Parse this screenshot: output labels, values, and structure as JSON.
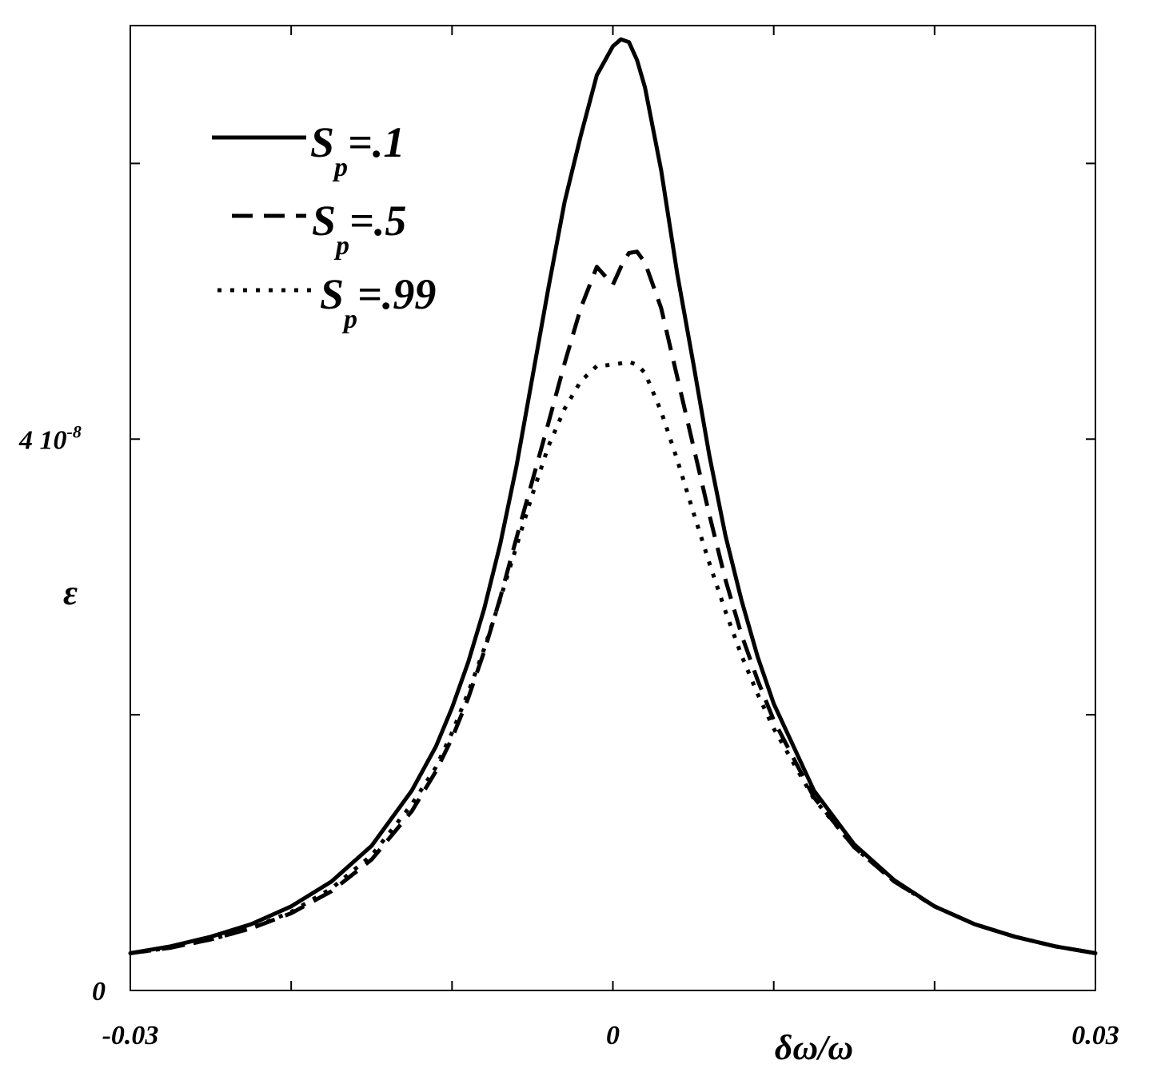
{
  "chart_data": {
    "type": "line",
    "xlabel": "δω/ω",
    "ylabel": "ε",
    "xlim": [
      -0.03,
      0.03
    ],
    "ylim": [
      0,
      7e-08
    ],
    "x_ticks": [
      {
        "value": -0.03,
        "label": "-0.03"
      },
      {
        "value": 0,
        "label": "0"
      },
      {
        "value": 0.03,
        "label": "0.03"
      }
    ],
    "y_ticks": [
      {
        "value": 0,
        "label": "0",
        "sup": ""
      },
      {
        "value": 4e-08,
        "label": "4 10",
        "sup": "-8"
      }
    ],
    "legend_position": "top-left",
    "series": [
      {
        "name": "S_p=.1",
        "legend_base": "S",
        "legend_sub": "p",
        "legend_val": "=.1",
        "style": "solid",
        "x": [
          -0.03,
          -0.0275,
          -0.025,
          -0.0225,
          -0.02,
          -0.0175,
          -0.015,
          -0.0125,
          -0.011,
          -0.01,
          -0.009,
          -0.008,
          -0.007,
          -0.006,
          -0.005,
          -0.004,
          -0.003,
          -0.002,
          -0.001,
          0,
          0.0005,
          0.001,
          0.0015,
          0.002,
          0.003,
          0.004,
          0.005,
          0.006,
          0.007,
          0.008,
          0.009,
          0.01,
          0.0125,
          0.015,
          0.0175,
          0.02,
          0.0225,
          0.025,
          0.0275,
          0.03
        ],
        "y": [
          2.7e-09,
          3.2e-09,
          3.9e-09,
          4.8e-09,
          6.1e-09,
          7.9e-09,
          1.05e-08,
          1.45e-08,
          1.77e-08,
          2.05e-08,
          2.38e-08,
          2.77e-08,
          3.24e-08,
          3.8e-08,
          4.45e-08,
          5.1e-08,
          5.72e-08,
          6.2e-08,
          6.64e-08,
          6.85e-08,
          6.9e-08,
          6.88e-08,
          6.75e-08,
          6.55e-08,
          5.95e-08,
          5.2e-08,
          4.55e-08,
          3.88e-08,
          3.3e-08,
          2.83e-08,
          2.42e-08,
          2.08e-08,
          1.45e-08,
          1.06e-08,
          8e-09,
          6.1e-09,
          4.8e-09,
          3.9e-09,
          3.2e-09,
          2.7e-09
        ]
      },
      {
        "name": "S_p=.5",
        "legend_base": "S",
        "legend_sub": "p",
        "legend_val": "=.5",
        "style": "dashed",
        "x": [
          -0.03,
          -0.0275,
          -0.025,
          -0.0225,
          -0.02,
          -0.0175,
          -0.015,
          -0.0125,
          -0.011,
          -0.01,
          -0.009,
          -0.008,
          -0.007,
          -0.006,
          -0.005,
          -0.004,
          -0.003,
          -0.002,
          -0.001,
          0,
          0.0005,
          0.001,
          0.0015,
          0.002,
          0.003,
          0.004,
          0.005,
          0.006,
          0.007,
          0.008,
          0.009,
          0.01,
          0.0125,
          0.015,
          0.0175,
          0.02,
          0.0225,
          0.025,
          0.0275,
          0.03
        ],
        "y": [
          2.7e-09,
          3.1e-09,
          3.7e-09,
          4.5e-09,
          5.6e-09,
          7.2e-09,
          9.5e-09,
          1.3e-08,
          1.59e-08,
          1.83e-08,
          2.12e-08,
          2.46e-08,
          2.85e-08,
          3.28e-08,
          3.7e-08,
          4.12e-08,
          4.55e-08,
          4.95e-08,
          5.25e-08,
          5.12e-08,
          5.25e-08,
          5.35e-08,
          5.36e-08,
          5.28e-08,
          4.95e-08,
          4.45e-08,
          3.95e-08,
          3.45e-08,
          2.98e-08,
          2.58e-08,
          2.25e-08,
          1.96e-08,
          1.4e-08,
          1.04e-08,
          7.9e-09,
          6.1e-09,
          4.8e-09,
          3.9e-09,
          3.2e-09,
          2.7e-09
        ]
      },
      {
        "name": "S_p=.99",
        "legend_base": "S",
        "legend_sub": "p",
        "legend_val": "=.99",
        "style": "dotted",
        "x": [
          -0.03,
          -0.0275,
          -0.025,
          -0.0225,
          -0.02,
          -0.0175,
          -0.015,
          -0.0125,
          -0.011,
          -0.01,
          -0.009,
          -0.008,
          -0.007,
          -0.006,
          -0.005,
          -0.004,
          -0.003,
          -0.002,
          -0.001,
          0,
          0.0005,
          0.001,
          0.0015,
          0.002,
          0.003,
          0.004,
          0.005,
          0.006,
          0.007,
          0.008,
          0.009,
          0.01,
          0.0125,
          0.015,
          0.0175,
          0.02,
          0.0225,
          0.025,
          0.0275,
          0.03
        ],
        "y": [
          2.7e-09,
          3.1e-09,
          3.7e-09,
          4.5e-09,
          5.7e-09,
          7.4e-09,
          9.8e-09,
          1.35e-08,
          1.62e-08,
          1.87e-08,
          2.16e-08,
          2.48e-08,
          2.84e-08,
          3.22e-08,
          3.6e-08,
          3.95e-08,
          4.22e-08,
          4.42e-08,
          4.53e-08,
          4.54e-08,
          4.55e-08,
          4.56e-08,
          4.54e-08,
          4.48e-08,
          4.2e-08,
          3.85e-08,
          3.47e-08,
          3.1e-08,
          2.75e-08,
          2.43e-08,
          2.15e-08,
          1.9e-08,
          1.39e-08,
          1.04e-08,
          7.9e-09,
          6.1e-09,
          4.8e-09,
          3.9e-09,
          3.2e-09,
          2.7e-09
        ]
      }
    ]
  }
}
